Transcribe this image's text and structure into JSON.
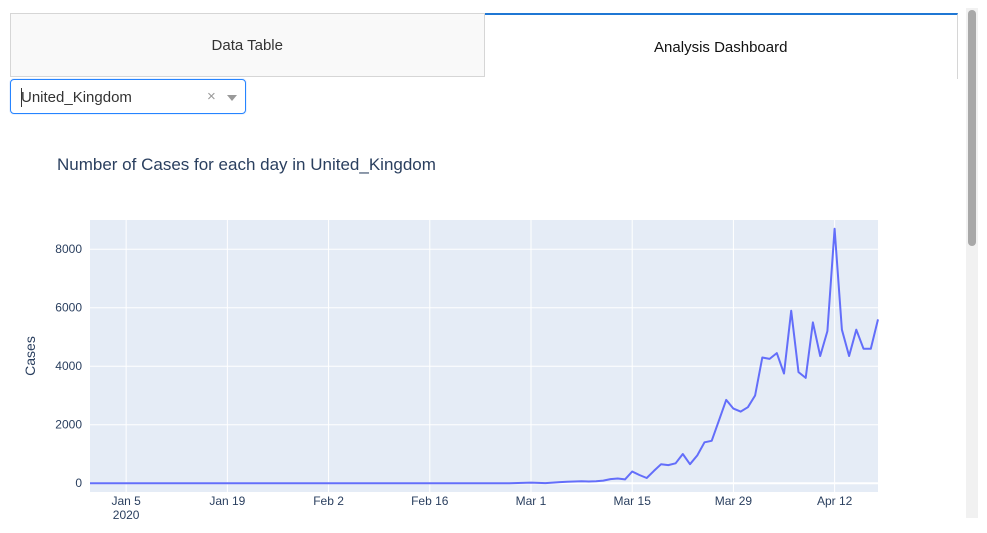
{
  "tabs": [
    {
      "label": "Data Table",
      "active": false
    },
    {
      "label": "Analysis Dashboard",
      "active": true
    }
  ],
  "dropdown": {
    "value": "United_Kingdom",
    "clear_glyph": "×"
  },
  "chart_data": {
    "type": "line",
    "title": "Number of Cases for each day in United_Kingdom",
    "xlabel": "",
    "ylabel": "Cases",
    "ylim": [
      -300,
      9000
    ],
    "xlim": [
      "2019-12-31",
      "2020-04-18"
    ],
    "x_ticks": [
      "Jan 5",
      "Jan 19",
      "Feb 2",
      "Feb 16",
      "Mar 1",
      "Mar 15",
      "Mar 29",
      "Apr 12"
    ],
    "x_tick_sublabel": "2020",
    "y_ticks": [
      "0",
      "2000",
      "4000",
      "6000",
      "8000"
    ],
    "line_color": "#636efa",
    "series": [
      {
        "x": [
          "2019-12-31",
          "2020-01-05",
          "2020-01-31",
          "2020-02-27",
          "2020-03-01",
          "2020-03-02",
          "2020-03-03",
          "2020-03-04",
          "2020-03-05",
          "2020-03-06",
          "2020-03-07",
          "2020-03-08",
          "2020-03-09",
          "2020-03-10",
          "2020-03-11",
          "2020-03-12",
          "2020-03-13",
          "2020-03-14",
          "2020-03-15",
          "2020-03-16",
          "2020-03-17",
          "2020-03-18",
          "2020-03-19",
          "2020-03-20",
          "2020-03-21",
          "2020-03-22",
          "2020-03-23",
          "2020-03-24",
          "2020-03-25",
          "2020-03-26",
          "2020-03-27",
          "2020-03-28",
          "2020-03-29",
          "2020-03-30",
          "2020-03-31",
          "2020-04-01",
          "2020-04-02",
          "2020-04-03",
          "2020-04-04",
          "2020-04-05",
          "2020-04-06",
          "2020-04-07",
          "2020-04-08",
          "2020-04-09",
          "2020-04-10",
          "2020-04-11",
          "2020-04-12",
          "2020-04-13",
          "2020-04-14",
          "2020-04-15",
          "2020-04-16",
          "2020-04-17",
          "2020-04-18"
        ],
        "y": [
          0,
          0,
          0,
          0,
          20,
          10,
          5,
          20,
          40,
          50,
          60,
          70,
          60,
          70,
          90,
          140,
          160,
          130,
          400,
          280,
          180,
          420,
          650,
          620,
          680,
          1000,
          650,
          950,
          1400,
          1450,
          2150,
          2850,
          2550,
          2450,
          2600,
          3000,
          4300,
          4250,
          4450,
          3750,
          5900,
          3800,
          3600,
          5500,
          4350,
          5200,
          8700,
          5250,
          4350,
          5250,
          4600,
          4600,
          5600
        ]
      }
    ]
  }
}
